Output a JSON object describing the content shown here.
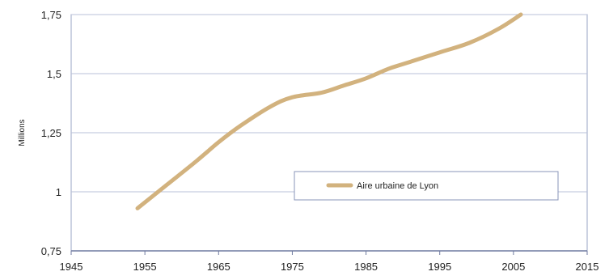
{
  "chart_data": {
    "type": "line",
    "title": "",
    "xlabel": "",
    "ylabel": "Millions",
    "xlim": [
      1945,
      2015
    ],
    "ylim": [
      0.75,
      1.75
    ],
    "x_ticks": [
      1945,
      1955,
      1965,
      1975,
      1985,
      1995,
      2005,
      2015
    ],
    "y_ticks": [
      0.75,
      1,
      1.25,
      1.5,
      1.75
    ],
    "x_tick_labels": [
      "1945",
      "1955",
      "1965",
      "1975",
      "1985",
      "1995",
      "2005",
      "2015"
    ],
    "y_tick_labels": [
      "0,75",
      "1",
      "1,25",
      "1,5",
      "1,75"
    ],
    "grid": "horizontal",
    "legend_position": "center-right",
    "series": [
      {
        "name": "Aire urbaine de Lyon",
        "color": "#d2b27e",
        "x": [
          1954,
          1958,
          1962,
          1965,
          1968,
          1972,
          1975,
          1979,
          1982,
          1985,
          1988,
          1990,
          1995,
          1999,
          2003,
          2006
        ],
        "y": [
          0.93,
          1.03,
          1.13,
          1.21,
          1.28,
          1.36,
          1.4,
          1.42,
          1.45,
          1.48,
          1.52,
          1.54,
          1.59,
          1.63,
          1.69,
          1.75
        ]
      }
    ]
  }
}
